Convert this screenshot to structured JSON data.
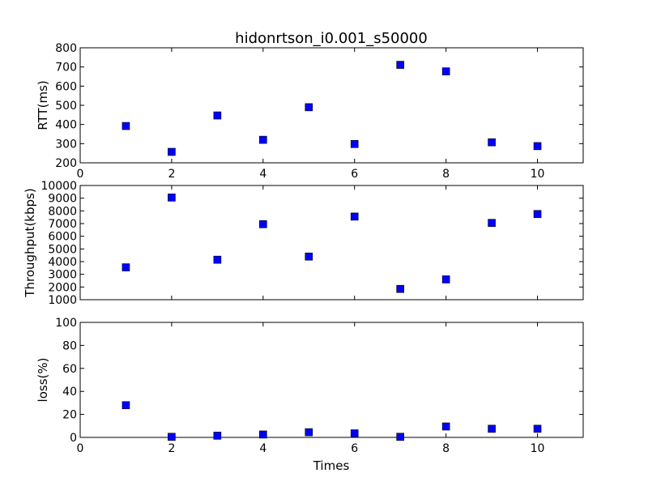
{
  "chart_data": {
    "type": "scatter",
    "title": "hidonrtson_i0.001_s50000",
    "xlabel": "Times",
    "marker_color": "#0000ff",
    "grid": false,
    "subplots": [
      {
        "name": "rtt",
        "ylabel": "RTT(ms)",
        "xlim": [
          0,
          11
        ],
        "ylim": [
          200,
          800
        ],
        "xticks": [
          0,
          2,
          4,
          6,
          8,
          10
        ],
        "yticks": [
          200,
          300,
          400,
          500,
          600,
          700,
          800
        ],
        "x": [
          1,
          2,
          3,
          4,
          5,
          6,
          7,
          8,
          9,
          10
        ],
        "y": [
          392,
          257,
          447,
          320,
          490,
          298,
          711,
          677,
          307,
          287
        ]
      },
      {
        "name": "throughput",
        "ylabel": "Throughput(kbps)",
        "xlim": [
          0,
          11
        ],
        "ylim": [
          1000,
          10000
        ],
        "xticks": [],
        "yticks": [
          1000,
          2000,
          3000,
          4000,
          5000,
          6000,
          7000,
          8000,
          9000,
          10000
        ],
        "x": [
          1,
          2,
          3,
          4,
          5,
          6,
          7,
          8,
          9,
          10
        ],
        "y": [
          3550,
          9050,
          4150,
          6950,
          4400,
          7550,
          1850,
          2600,
          7050,
          7750
        ]
      },
      {
        "name": "loss",
        "ylabel": "loss(%)",
        "xlim": [
          0,
          11
        ],
        "ylim": [
          0,
          100
        ],
        "xticks": [
          0,
          2,
          4,
          6,
          8,
          10
        ],
        "yticks": [
          0,
          20,
          40,
          60,
          80,
          100
        ],
        "x": [
          1,
          2,
          3,
          4,
          5,
          6,
          7,
          8,
          9,
          10
        ],
        "y": [
          28,
          0.5,
          1.5,
          2.5,
          4.5,
          3.5,
          0.5,
          9.5,
          7.5,
          7.5
        ]
      }
    ]
  }
}
